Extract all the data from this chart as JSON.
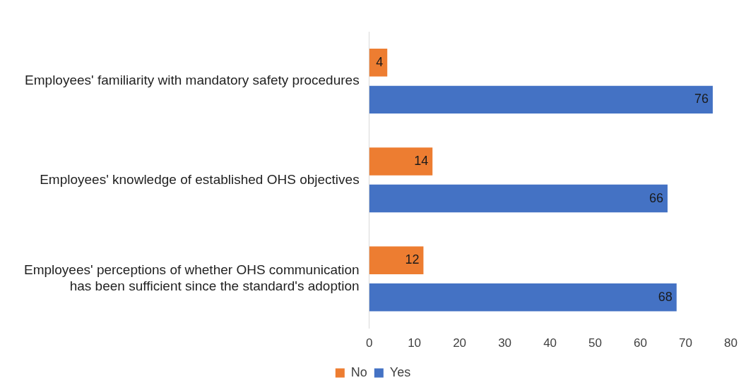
{
  "chart_data": {
    "type": "bar",
    "orientation": "horizontal",
    "categories": [
      "Employees' familiarity with mandatory safety procedures",
      "Employees' knowledge of established OHS objectives",
      "Employees' perceptions of whether OHS communication has been sufficient since the standard's adoption"
    ],
    "series": [
      {
        "name": "No",
        "color": "#ed7d31",
        "values": [
          4,
          14,
          12
        ]
      },
      {
        "name": "Yes",
        "color": "#4472c4",
        "values": [
          76,
          66,
          68
        ]
      }
    ],
    "xlim": [
      0,
      80
    ],
    "xticks": [
      0,
      10,
      20,
      30,
      40,
      50,
      60,
      70,
      80
    ],
    "grid": false,
    "legend": "bottom",
    "data_labels": true
  }
}
